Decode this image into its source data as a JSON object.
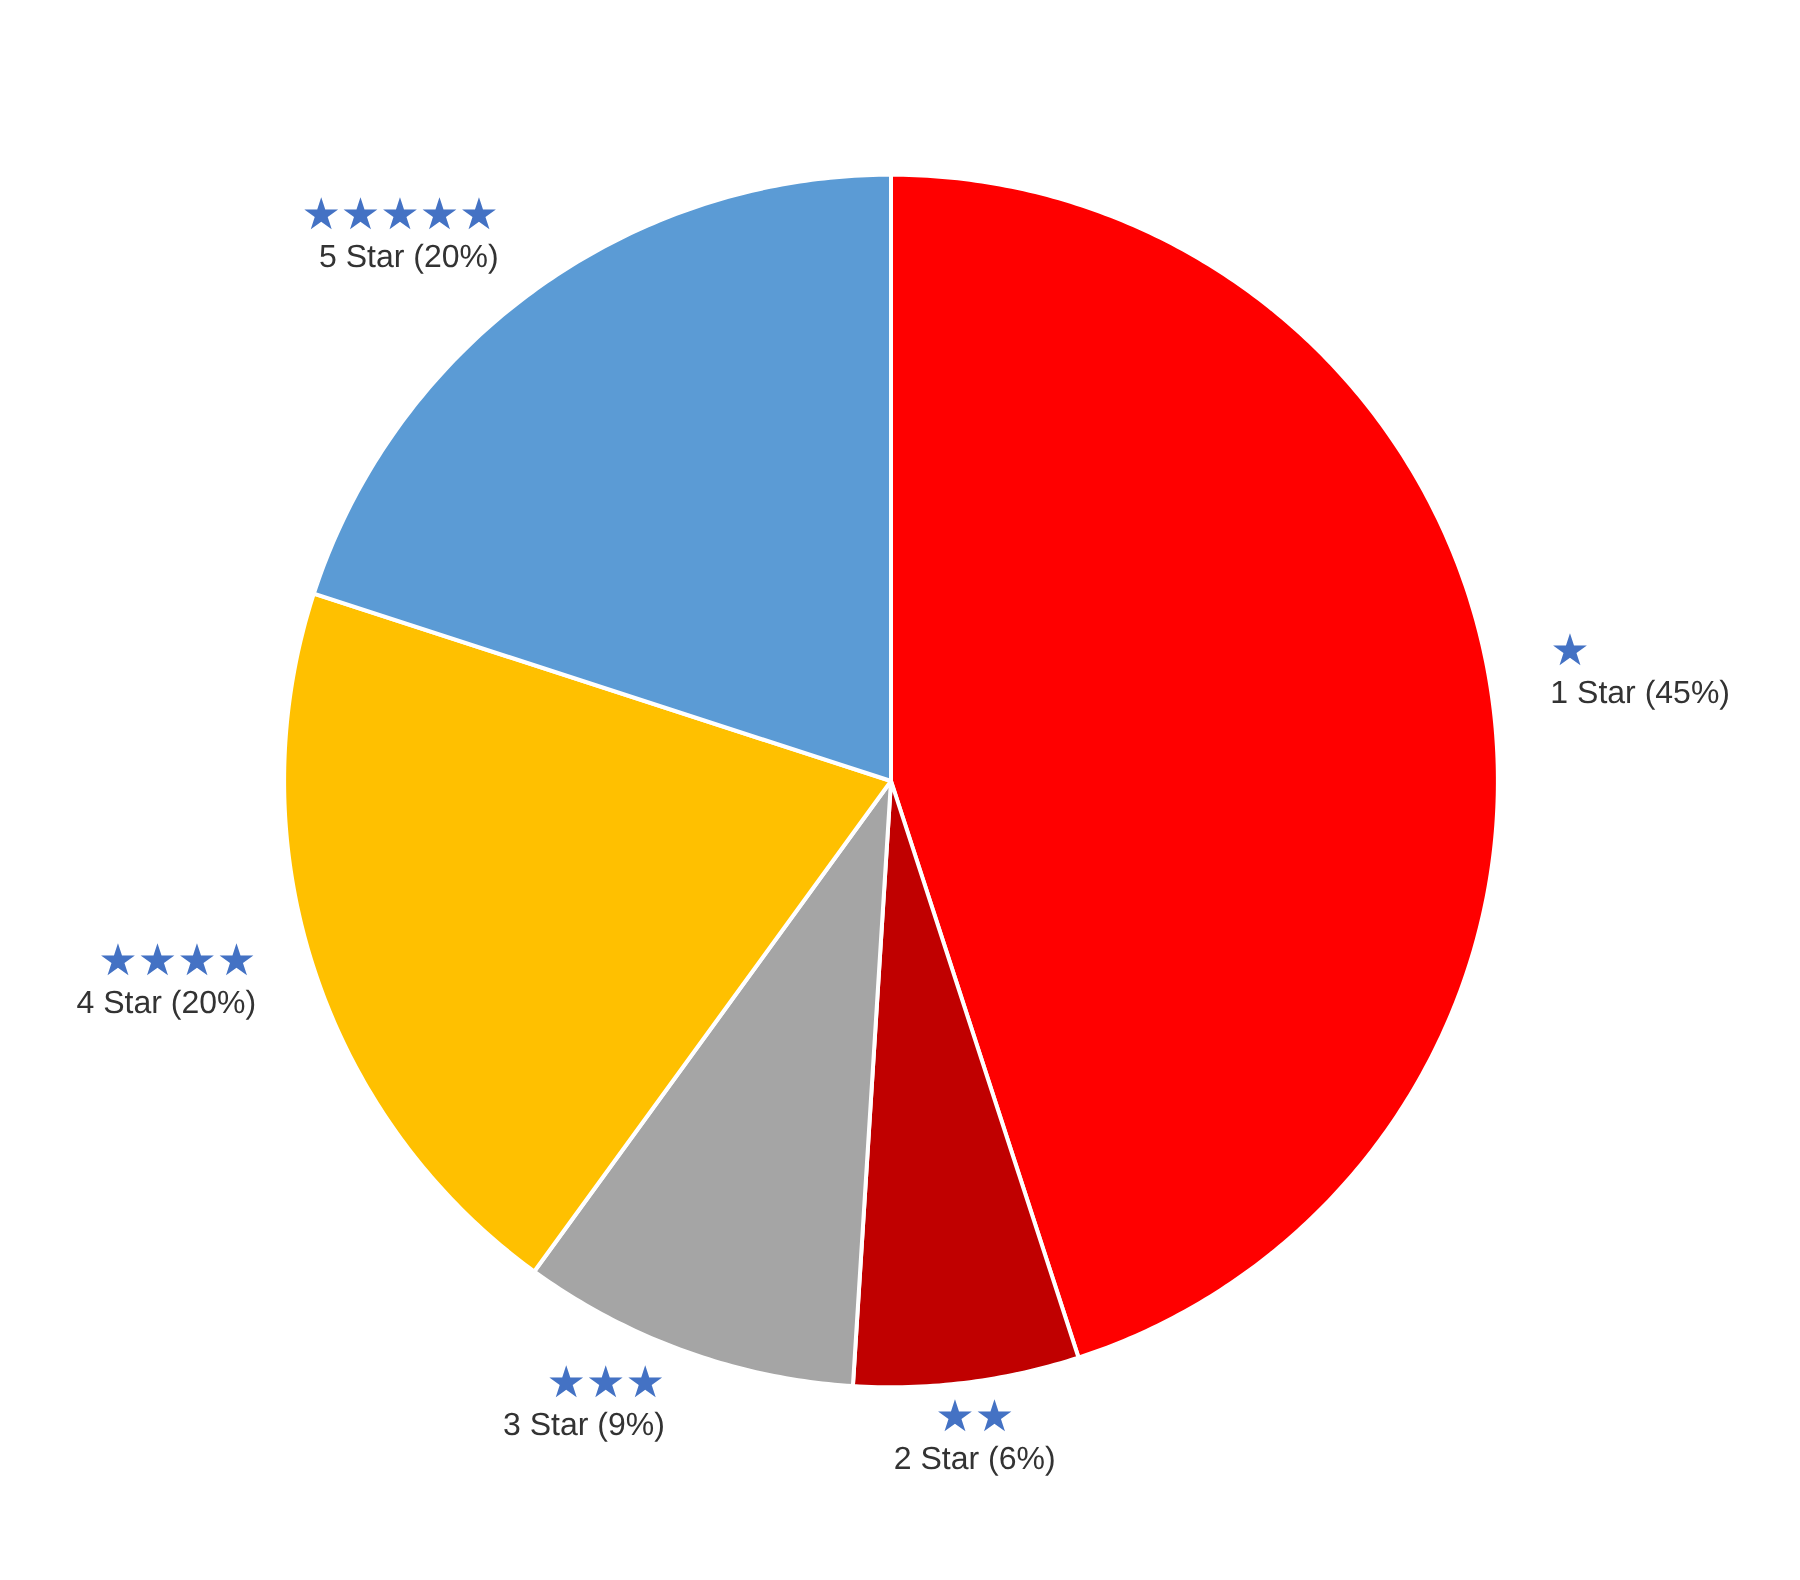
{
  "chart_data": {
    "type": "pie",
    "categories": [
      "1 Star (45%)",
      "2 Star (6%)",
      "3 Star (9%)",
      "4 Star (20%)",
      "5 Star (20%)"
    ],
    "values": [
      45,
      6,
      9,
      20,
      20
    ],
    "colors": [
      "#ff0000",
      "#c00000",
      "#a5a5a5",
      "#ffc000",
      "#5b9bd5"
    ],
    "annotations": [
      "★",
      "★★",
      "★★★",
      "★★★★",
      "★★★★★"
    ]
  }
}
